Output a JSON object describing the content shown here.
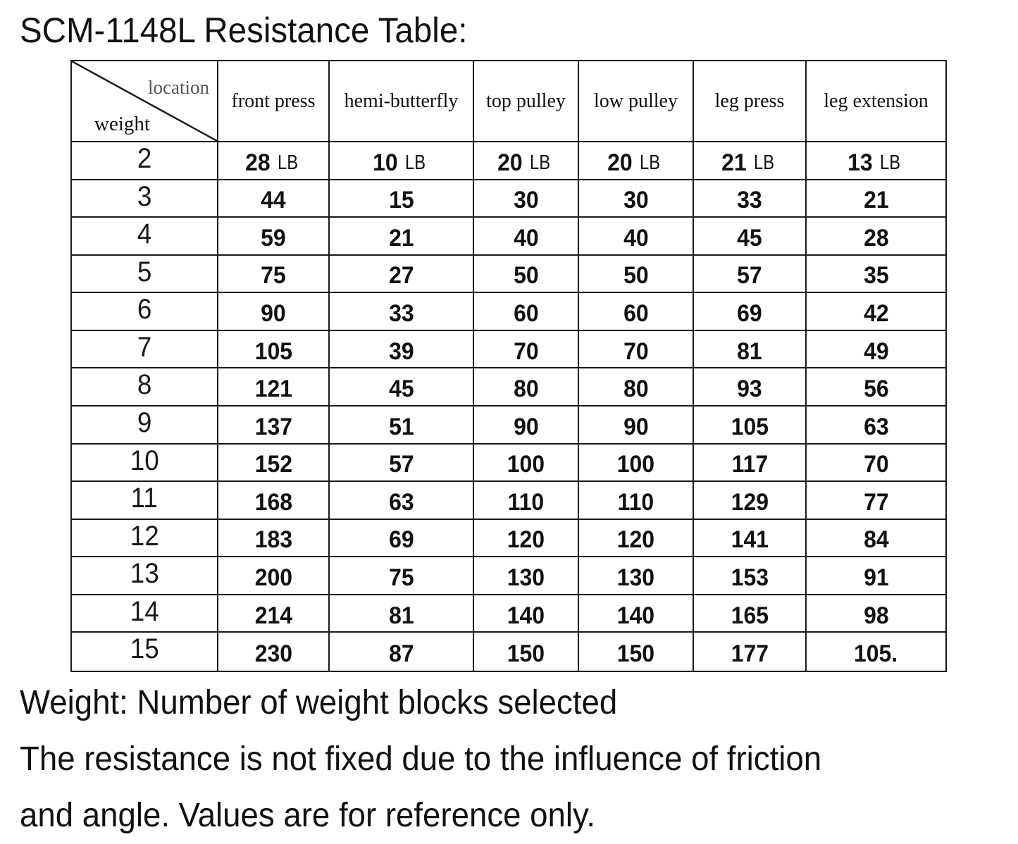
{
  "title": "SCM-1148L Resistance Table:",
  "table": {
    "corner": {
      "location_label": "location",
      "weight_label": "weight"
    },
    "columns": [
      "front press",
      "hemi-butterfly",
      "top pulley",
      "low pulley",
      "leg press",
      "leg extension"
    ],
    "unit": "LB",
    "rows": [
      {
        "weight": "2",
        "values": [
          "28",
          "10",
          "20",
          "20",
          "21",
          "13"
        ],
        "show_unit": true
      },
      {
        "weight": "3",
        "values": [
          "44",
          "15",
          "30",
          "30",
          "33",
          "21"
        ]
      },
      {
        "weight": "4",
        "values": [
          "59",
          "21",
          "40",
          "40",
          "45",
          "28"
        ]
      },
      {
        "weight": "5",
        "values": [
          "75",
          "27",
          "50",
          "50",
          "57",
          "35"
        ]
      },
      {
        "weight": "6",
        "values": [
          "90",
          "33",
          "60",
          "60",
          "69",
          "42"
        ]
      },
      {
        "weight": "7",
        "values": [
          "105",
          "39",
          "70",
          "70",
          "81",
          "49"
        ]
      },
      {
        "weight": "8",
        "values": [
          "121",
          "45",
          "80",
          "80",
          "93",
          "56"
        ]
      },
      {
        "weight": "9",
        "values": [
          "137",
          "51",
          "90",
          "90",
          "105",
          "63"
        ]
      },
      {
        "weight": "10",
        "values": [
          "152",
          "57",
          "100",
          "100",
          "117",
          "70"
        ]
      },
      {
        "weight": "11",
        "values": [
          "168",
          "63",
          "110",
          "110",
          "129",
          "77"
        ]
      },
      {
        "weight": "12",
        "values": [
          "183",
          "69",
          "120",
          "120",
          "141",
          "84"
        ]
      },
      {
        "weight": "13",
        "values": [
          "200",
          "75",
          "130",
          "130",
          "153",
          "91"
        ]
      },
      {
        "weight": "14",
        "values": [
          "214",
          "81",
          "140",
          "140",
          "165",
          "98"
        ]
      },
      {
        "weight": "15",
        "values": [
          "230",
          "87",
          "150",
          "150",
          "177",
          "105."
        ]
      }
    ]
  },
  "notes": [
    "Weight: Number of weight blocks selected",
    "The resistance is not fixed due to the influence of friction",
    "and angle. Values are for reference only."
  ],
  "colors": {
    "text": "#111111",
    "location_label": "#555555",
    "border": "#1a1a1a",
    "background": "#ffffff"
  }
}
